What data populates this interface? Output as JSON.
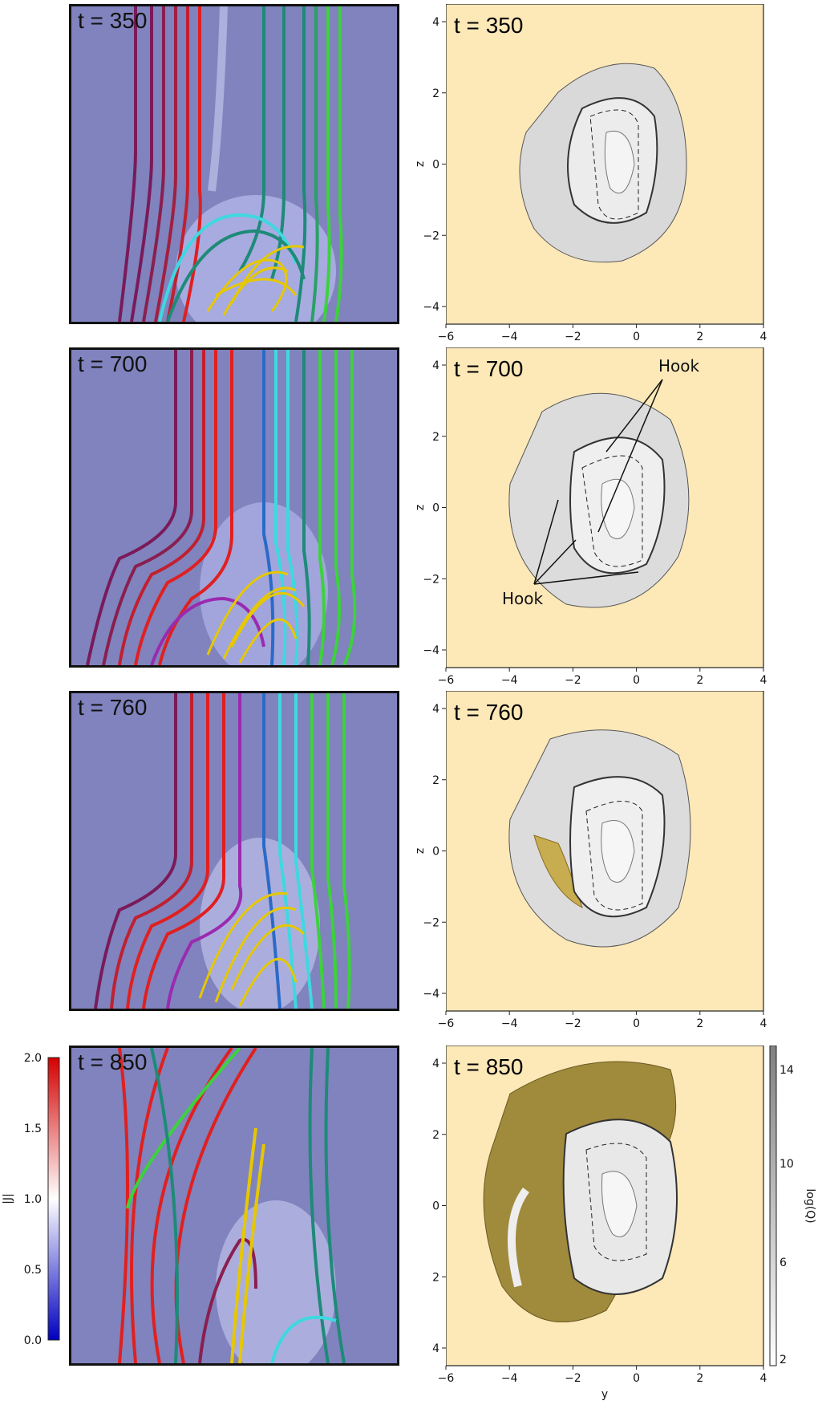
{
  "rows": [
    {
      "time_label": "t = 350"
    },
    {
      "time_label": "t = 700"
    },
    {
      "time_label": "t = 760"
    },
    {
      "time_label": "t = 850"
    }
  ],
  "axes": {
    "x_ticks": [
      "−6",
      "−4",
      "−2",
      "0",
      "2",
      "4"
    ],
    "z_ticks_top": [
      "4",
      "2",
      "0",
      "−2",
      "−4"
    ],
    "z_ticks_bottom": [
      "4",
      "2",
      "0",
      "2",
      "4"
    ],
    "z_label": "z",
    "y_label": "y"
  },
  "annotations": {
    "hook": "Hook"
  },
  "j_colorbar": {
    "label": "|J|",
    "ticks": [
      "2.0",
      "1.5",
      "1.0",
      "0.5",
      "0.0"
    ],
    "colors": {
      "high": "#d40000",
      "mid": "#ffffff",
      "low": "#0000c0"
    }
  },
  "q_colorbar": {
    "label": "log(Q)",
    "ticks": [
      "14",
      "10",
      "6",
      "2"
    ]
  },
  "colors": {
    "sim_bg": "#8083bd",
    "q_bg": "#fde8b8",
    "red": "#e02020",
    "purple": "#7a1a5a",
    "teal": "#1e8a78",
    "cyan": "#3ed8e0",
    "green": "#3cd23c",
    "yellow": "#e6c800",
    "gold": "#a08a3c"
  }
}
